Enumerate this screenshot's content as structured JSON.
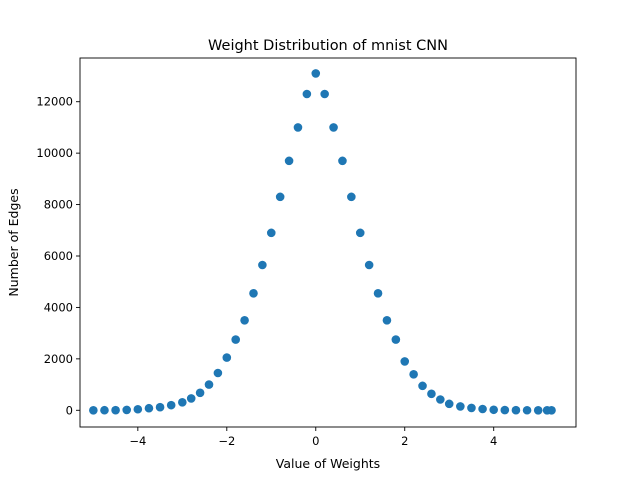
{
  "chart_data": {
    "type": "scatter",
    "title": "Weight Distribution of mnist CNN",
    "xlabel": "Value of Weights",
    "ylabel": "Number of Edges",
    "xlim": [
      -5.3,
      5.85
    ],
    "ylim": [
      -650,
      13700
    ],
    "xticks": [
      -4,
      -2,
      0,
      2,
      4
    ],
    "xtick_labels": [
      "−4",
      "−2",
      "0",
      "2",
      "4"
    ],
    "yticks": [
      0,
      2000,
      4000,
      6000,
      8000,
      10000,
      12000
    ],
    "ytick_labels": [
      "0",
      "2000",
      "4000",
      "6000",
      "8000",
      "10000",
      "12000"
    ],
    "grid": false,
    "legend": "none",
    "series": [
      {
        "color": "#1f77b4",
        "marker": "circle",
        "x": [
          -5.0,
          -4.75,
          -4.5,
          -4.25,
          -4.0,
          -3.75,
          -3.5,
          -3.25,
          -3.0,
          -2.8,
          -2.6,
          -2.4,
          -2.2,
          -2.0,
          -1.8,
          -1.6,
          -1.4,
          -1.2,
          -1.0,
          -0.8,
          -0.6,
          -0.4,
          -0.2,
          0.0,
          0.2,
          0.4,
          0.6,
          0.8,
          1.0,
          1.2,
          1.4,
          1.6,
          1.8,
          2.0,
          2.2,
          2.4,
          2.6,
          2.8,
          3.0,
          3.25,
          3.5,
          3.75,
          4.0,
          4.25,
          4.5,
          4.75,
          5.0,
          5.2,
          5.3
        ],
        "y": [
          0,
          2,
          5,
          15,
          40,
          80,
          120,
          200,
          310,
          460,
          680,
          1000,
          1450,
          2050,
          2750,
          3500,
          4550,
          5650,
          6900,
          8300,
          9700,
          11000,
          12300,
          13100,
          12300,
          11000,
          9700,
          8300,
          6900,
          5650,
          4550,
          3500,
          2750,
          1900,
          1400,
          950,
          640,
          420,
          250,
          150,
          90,
          50,
          20,
          8,
          3,
          1,
          0,
          0,
          0
        ]
      }
    ]
  }
}
